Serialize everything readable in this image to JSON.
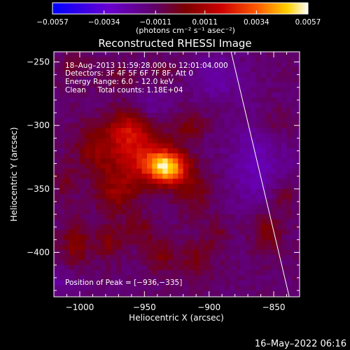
{
  "chart_data": {
    "type": "heatmap",
    "title": "Reconstructed RHESSI Image",
    "xlabel": "Heliocentric X (arcsec)",
    "ylabel": "Heliocentric Y (arcsec)",
    "xlim": [
      -1020,
      -830
    ],
    "ylim": [
      -435,
      -242
    ],
    "x_ticks": [
      -1000,
      -950,
      -900,
      -850
    ],
    "y_ticks": [
      -250,
      -300,
      -350,
      -400
    ],
    "x_tick_labels": [
      "−1000",
      "−950",
      "−900",
      "−850"
    ],
    "y_tick_labels": [
      "−250",
      "−300",
      "−350",
      "−400"
    ],
    "colorbar": {
      "range": [
        -0.0057,
        0.0057
      ],
      "tick_values": [
        -0.0057,
        -0.0034,
        -0.0011,
        0.0011,
        0.0034,
        0.0057
      ],
      "tick_labels": [
        "−0.0057",
        "−0.0034",
        "−0.0011",
        "0.0011",
        "0.0034",
        "0.0057"
      ],
      "unit_label": "(photons cm⁻² s⁻¹ asec⁻²)"
    },
    "annotations": [
      "18–Aug–2013 11:59:28.000 to 12:01:04.000",
      "Detectors: 3F 4F 5F 6F 7F 8F, Att 0",
      "Energy Range: 6.0 – 12.0 keV",
      "Clean     Total counts: 1.18E+04"
    ],
    "peak_label": "Position of Peak = [−936,−335]",
    "peak": [
      -936,
      -335
    ],
    "limb_line": [
      [
        -883,
        -242
      ],
      [
        -838,
        -435
      ]
    ],
    "sources": [
      {
        "x": -933,
        "y": -333,
        "sx": 11,
        "sy": 9,
        "amp": 0.0058
      },
      {
        "x": -956,
        "y": -322,
        "sx": 17,
        "sy": 17,
        "amp": 0.0026
      },
      {
        "x": -963,
        "y": -302,
        "sx": 11,
        "sy": 11,
        "amp": 0.0019
      },
      {
        "x": -972,
        "y": -353,
        "sx": 12,
        "sy": 12,
        "amp": 0.0016
      },
      {
        "x": -990,
        "y": -318,
        "sx": 11,
        "sy": 13,
        "amp": 0.0014
      },
      {
        "x": -915,
        "y": -300,
        "sx": 9,
        "sy": 8,
        "amp": 0.0012
      },
      {
        "x": -912,
        "y": -352,
        "sx": 10,
        "sy": 12,
        "amp": 0.0013
      },
      {
        "x": -1003,
        "y": -393,
        "sx": 8,
        "sy": 14,
        "amp": 0.0016
      },
      {
        "x": -978,
        "y": -392,
        "sx": 7,
        "sy": 10,
        "amp": 0.0014
      },
      {
        "x": -955,
        "y": -382,
        "sx": 9,
        "sy": 8,
        "amp": 0.0012
      },
      {
        "x": -938,
        "y": -402,
        "sx": 8,
        "sy": 10,
        "amp": 0.0013
      },
      {
        "x": -910,
        "y": -405,
        "sx": 10,
        "sy": 11,
        "amp": 0.0012
      },
      {
        "x": -893,
        "y": -385,
        "sx": 7,
        "sy": 8,
        "amp": 0.0009
      },
      {
        "x": -855,
        "y": -383,
        "sx": 8,
        "sy": 12,
        "amp": 0.0016
      },
      {
        "x": -842,
        "y": -355,
        "sx": 7,
        "sy": 9,
        "amp": 0.0012
      },
      {
        "x": -850,
        "y": -300,
        "sx": 10,
        "sy": 10,
        "amp": 0.0008
      },
      {
        "x": -1005,
        "y": -255,
        "sx": 8,
        "sy": 7,
        "amp": 0.0009
      },
      {
        "x": -970,
        "y": -262,
        "sx": 9,
        "sy": 7,
        "amp": 0.0008
      },
      {
        "x": -935,
        "y": -260,
        "sx": 8,
        "sy": 7,
        "amp": 0.0007
      },
      {
        "x": -1012,
        "y": -345,
        "sx": 6,
        "sy": 10,
        "amp": 0.001
      },
      {
        "x": -945,
        "y": -285,
        "sx": 10,
        "sy": 10,
        "amp": -0.001
      },
      {
        "x": -862,
        "y": -330,
        "sx": 16,
        "sy": 26,
        "amp": -0.0014
      },
      {
        "x": -893,
        "y": -262,
        "sx": 14,
        "sy": 12,
        "amp": -0.0012
      },
      {
        "x": -1015,
        "y": -425,
        "sx": 12,
        "sy": 10,
        "amp": -0.0008
      }
    ],
    "background_level": -0.0012
  },
  "footer": {
    "timestamp": "16–May–2022 06:16"
  }
}
